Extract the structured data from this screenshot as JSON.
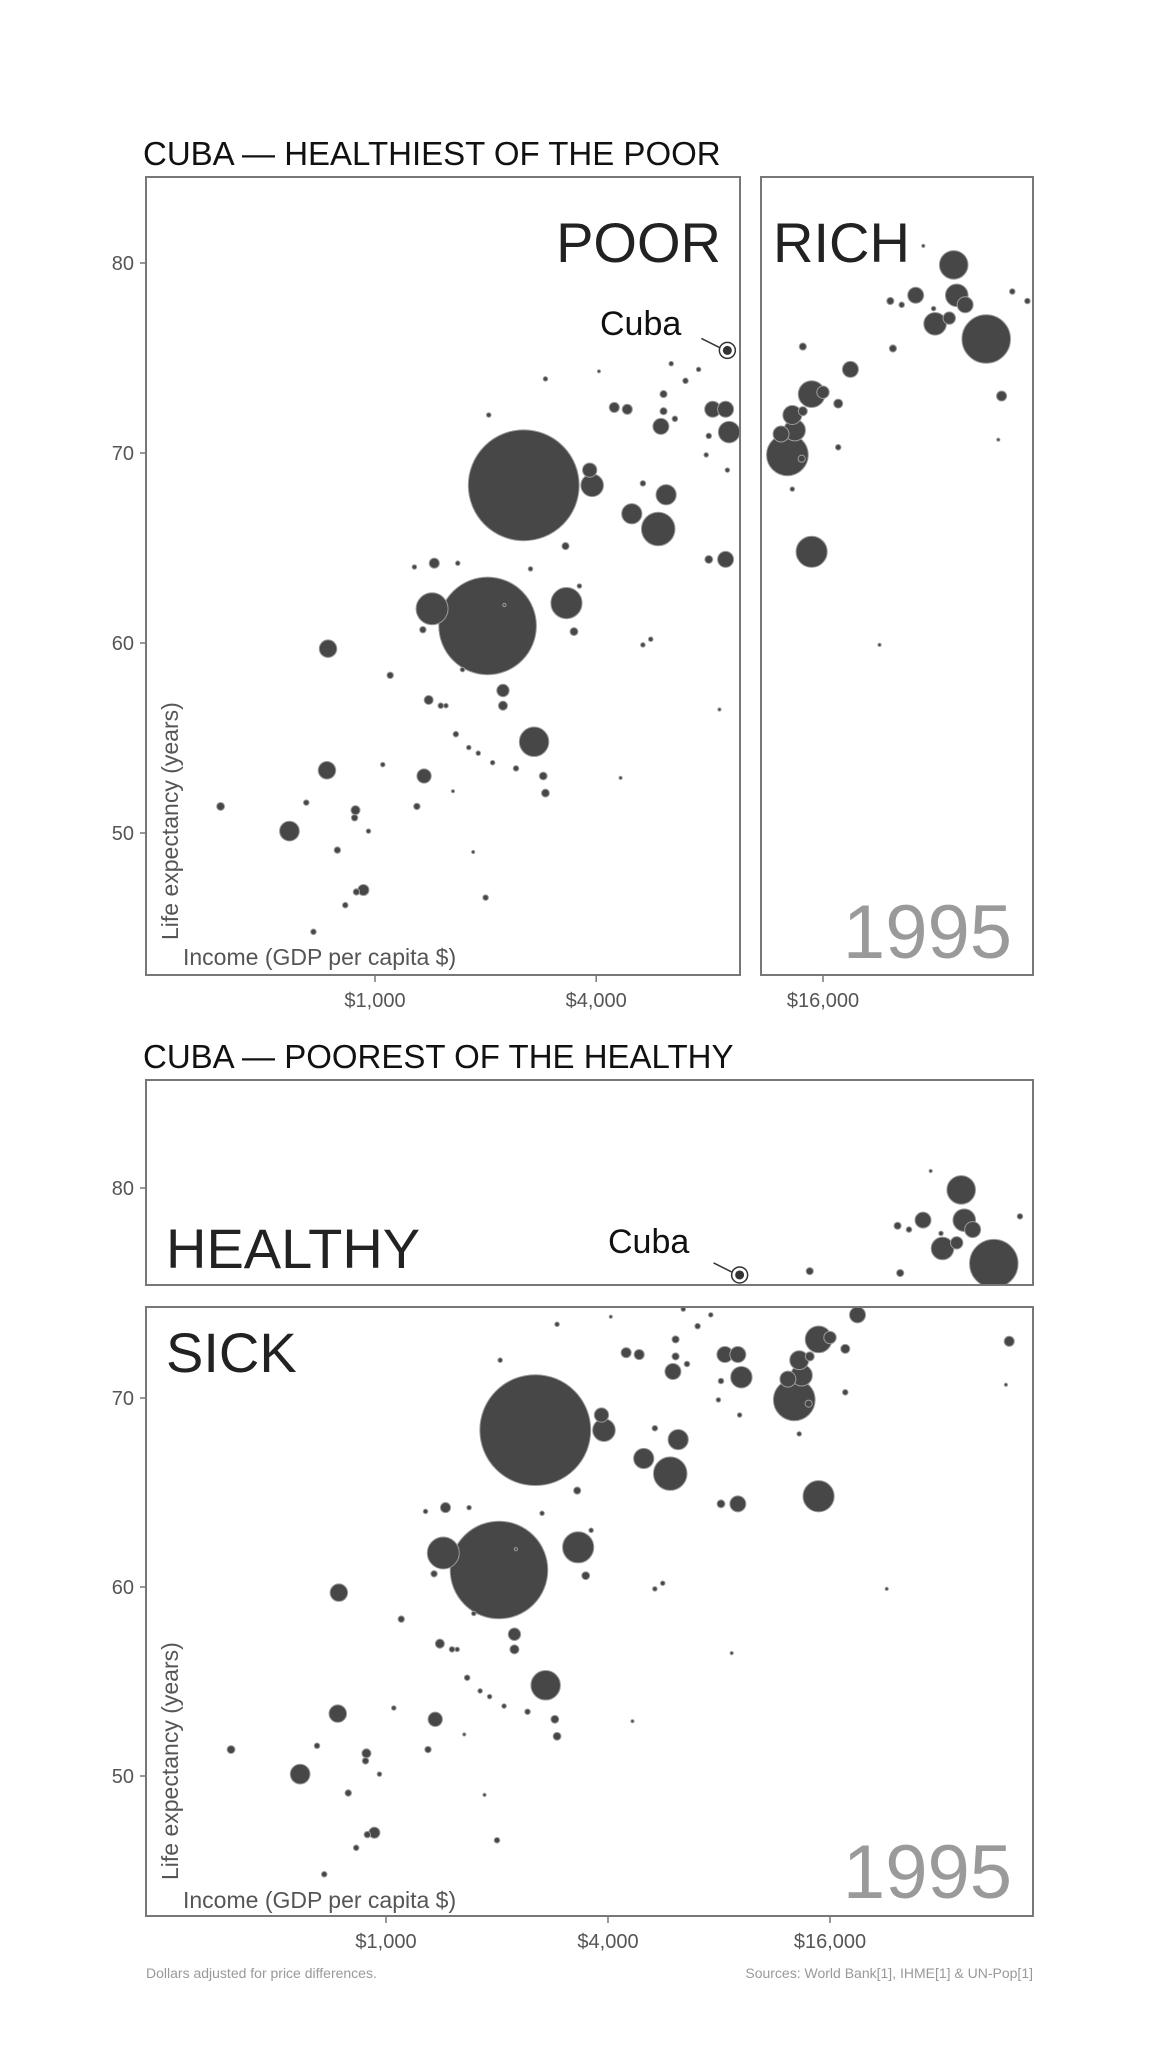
{
  "chart_data": [
    {
      "type": "scatter",
      "title": "CUBA — HEALTHIEST OF THE POOR",
      "panels": [
        "POOR",
        "RICH"
      ],
      "year": "1995",
      "xlabel": "Income (GDP per capita $)",
      "ylabel": "Life expectancy (years)",
      "xscale": "log",
      "x_ticks": [
        "$1,000",
        "$4,000",
        "$16,000"
      ],
      "x_tick_values": [
        1000,
        4000,
        16000
      ],
      "y_ticks": [
        "50",
        "60",
        "70",
        "80"
      ],
      "y_tick_values": [
        50,
        60,
        70,
        80
      ],
      "xlim_poor": [
        237,
        9850
      ],
      "xlim_rich": [
        10800,
        59000
      ],
      "ylim": [
        42.6,
        84.5
      ],
      "split_income": 10300,
      "annotation": "Cuba"
    },
    {
      "type": "scatter",
      "title": "CUBA — POOREST OF THE HEALTHY",
      "panels": [
        "HEALTHY",
        "SICK"
      ],
      "year": "1995",
      "xlabel": "Income (GDP per capita $)",
      "ylabel": "Life expectancy (years)",
      "xscale": "log",
      "x_ticks": [
        "$1,000",
        "$4,000",
        "$16,000"
      ],
      "x_tick_values": [
        1000,
        4000,
        16000
      ],
      "y_ticks": [
        "50",
        "60",
        "70",
        "80"
      ],
      "y_tick_values": [
        50,
        60,
        70,
        80
      ],
      "xlim": [
        225,
        56000
      ],
      "ylim_healthy": [
        74.9,
        85.7
      ],
      "ylim_sick": [
        42.5,
        74.8
      ],
      "split_life": 75.2,
      "annotation": "Cuba",
      "footnote": "Dollars adjusted for price differences.",
      "sources": "Sources: World Bank[1], IHME[1] & UN-Pop[1]"
    }
  ],
  "points_columns": [
    "income",
    "life_expectancy",
    "population_millions"
  ],
  "cuba": [
    9100,
    75.4,
    11
  ],
  "points": [
    [
      380,
      51.4,
      6
    ],
    [
      585,
      50.1,
      38
    ],
    [
      650,
      51.6,
      3
    ],
    [
      740,
      53.3,
      30
    ],
    [
      885,
      51.2,
      8
    ],
    [
      880,
      50.8,
      4
    ],
    [
      790,
      49.1,
      4
    ],
    [
      960,
      50.1,
      2
    ],
    [
      930,
      47,
      12
    ],
    [
      890,
      46.9,
      4
    ],
    [
      830,
      46.2,
      3
    ],
    [
      680,
      44.8,
      3
    ],
    [
      745,
      59.7,
      30
    ],
    [
      1100,
      58.3,
      4
    ],
    [
      1050,
      53.6,
      2
    ],
    [
      1300,
      51.4,
      4
    ],
    [
      1360,
      53,
      20
    ],
    [
      1400,
      57,
      8
    ],
    [
      1510,
      56.7,
      3
    ],
    [
      1560,
      56.7,
      2
    ],
    [
      1630,
      52.2,
      1
    ],
    [
      1660,
      55.2,
      3
    ],
    [
      1800,
      54.5,
      2
    ],
    [
      1850,
      49,
      1
    ],
    [
      2000,
      46.6,
      3
    ],
    [
      1910,
      54.2,
      2
    ],
    [
      2025,
      60.9,
      930
    ],
    [
      1430,
      61.8,
      100
    ],
    [
      1350,
      60.7,
      4
    ],
    [
      1450,
      64.2,
      10
    ],
    [
      1280,
      64,
      2
    ],
    [
      1680,
      64.2,
      2
    ],
    [
      1730,
      58.6,
      2
    ],
    [
      2230,
      57.5,
      15
    ],
    [
      2230,
      56.7,
      8
    ],
    [
      2090,
      53.7,
      2
    ],
    [
      2420,
      53.4,
      3
    ],
    [
      2710,
      54.8,
      85
    ],
    [
      2870,
      53,
      6
    ],
    [
      2910,
      52.1,
      6
    ],
    [
      2250,
      62,
      1
    ],
    [
      2540,
      68.3,
      1200
    ],
    [
      2040,
      72,
      2
    ],
    [
      3320,
      62.1,
      95
    ],
    [
      3480,
      60.6,
      6
    ],
    [
      2650,
      63.9,
      2
    ],
    [
      3300,
      65.1,
      5
    ],
    [
      3600,
      63,
      2
    ],
    [
      3900,
      68.3,
      50
    ],
    [
      3840,
      69.1,
      20
    ],
    [
      2910,
      73.9,
      2
    ],
    [
      4070,
      74.3,
      1
    ],
    [
      4480,
      72.4,
      10
    ],
    [
      4860,
      72.3,
      10
    ],
    [
      5000,
      66.8,
      40
    ],
    [
      6200,
      67.8,
      40
    ],
    [
      5900,
      66,
      110
    ],
    [
      5360,
      68.4,
      3
    ],
    [
      5360,
      59.9,
      2
    ],
    [
      5630,
      60.2,
      2
    ],
    [
      4660,
      52.9,
      1
    ],
    [
      8660,
      56.5,
      1
    ],
    [
      8100,
      64.4,
      6
    ],
    [
      9000,
      64.4,
      25
    ],
    [
      6000,
      71.4,
      25
    ],
    [
      6100,
      73.1,
      5
    ],
    [
      6100,
      72.2,
      5
    ],
    [
      6550,
      71.8,
      3
    ],
    [
      7000,
      73.8,
      3
    ],
    [
      8300,
      72.3,
      25
    ],
    [
      9000,
      72.3,
      25
    ],
    [
      9200,
      71.1,
      45
    ],
    [
      8100,
      70.9,
      3
    ],
    [
      7600,
      74.4,
      2
    ],
    [
      6400,
      74.7,
      2
    ],
    [
      7970,
      69.9,
      2
    ],
    [
      9100,
      69.1,
      2
    ],
    [
      12800,
      69.9,
      170
    ],
    [
      12300,
      71,
      25
    ],
    [
      13400,
      71.2,
      45
    ],
    [
      13200,
      72,
      35
    ],
    [
      14900,
      73.1,
      70
    ],
    [
      14100,
      72.2,
      8
    ],
    [
      16000,
      73.2,
      15
    ],
    [
      17600,
      72.6,
      8
    ],
    [
      19000,
      74.4,
      25
    ],
    [
      14100,
      75.6,
      5
    ],
    [
      14000,
      69.7,
      5
    ],
    [
      17600,
      70.3,
      3
    ],
    [
      14900,
      64.8,
      95
    ],
    [
      13200,
      68.1,
      2
    ],
    [
      22800,
      59.9,
      1
    ],
    [
      24800,
      75.5,
      5
    ],
    [
      24400,
      78,
      5
    ],
    [
      26200,
      77.8,
      3
    ],
    [
      28600,
      78.3,
      25
    ],
    [
      32300,
      76.8,
      50
    ],
    [
      36300,
      79.9,
      80
    ],
    [
      37000,
      78.3,
      50
    ],
    [
      39000,
      77.8,
      25
    ],
    [
      44500,
      76,
      230
    ],
    [
      35300,
      77.1,
      15
    ],
    [
      49000,
      73,
      10
    ],
    [
      52400,
      78.5,
      3
    ],
    [
      57600,
      78,
      3
    ],
    [
      48000,
      70.7,
      1
    ],
    [
      32000,
      77.6,
      2
    ],
    [
      30000,
      80.9,
      1
    ]
  ],
  "colors": {
    "bubble": "#474747",
    "bubble_outline": "#9c9c9c",
    "year": "#9a9a9a",
    "frame": "#777777"
  }
}
